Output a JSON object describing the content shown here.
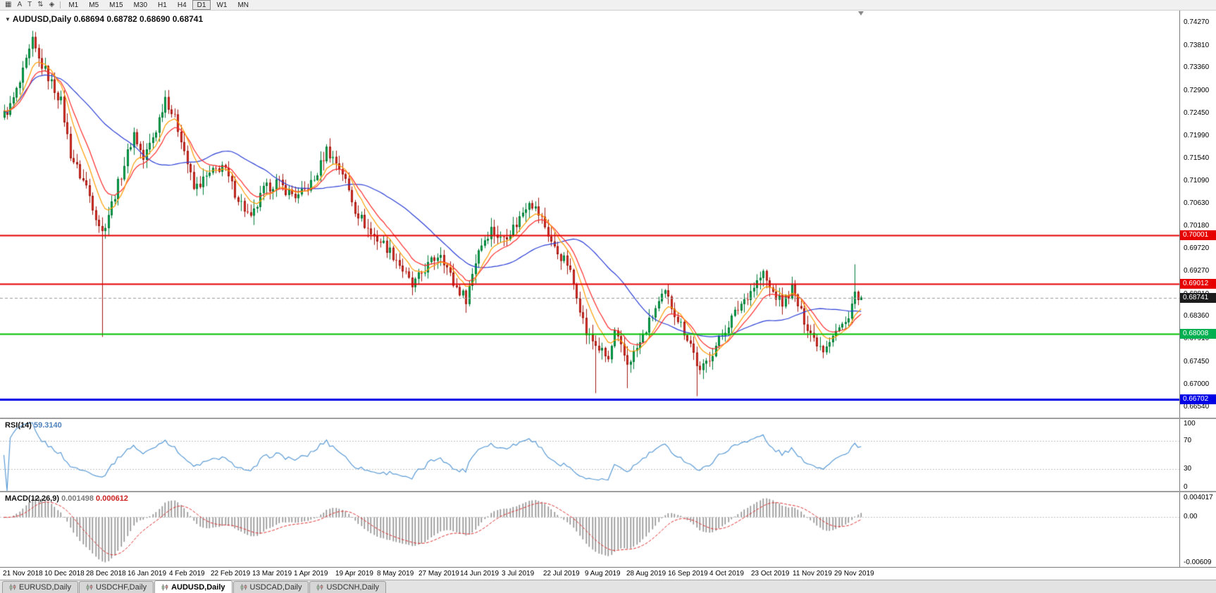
{
  "toolbar": {
    "tools": [
      {
        "name": "chart-grid-icon",
        "glyph": "▦"
      },
      {
        "name": "arrow-tool-button",
        "glyph": "A"
      },
      {
        "name": "text-tool-button",
        "glyph": "T"
      },
      {
        "name": "scale-updown-icon",
        "glyph": "⇅"
      },
      {
        "name": "objects-tool-icon",
        "glyph": "◈"
      }
    ],
    "timeframes": [
      {
        "label": "M1",
        "active": false
      },
      {
        "label": "M5",
        "active": false
      },
      {
        "label": "M15",
        "active": false
      },
      {
        "label": "M30",
        "active": false
      },
      {
        "label": "H1",
        "active": false
      },
      {
        "label": "H4",
        "active": false
      },
      {
        "label": "D1",
        "active": true
      },
      {
        "label": "W1",
        "active": false
      },
      {
        "label": "MN",
        "active": false
      }
    ]
  },
  "main_chart": {
    "symbol_label": "AUDUSD,Daily",
    "ohlc_text": "0.68694 0.68782 0.68690 0.68741",
    "price_scale_labels": [
      "0.74270",
      "0.73810",
      "0.73360",
      "0.72900",
      "0.72450",
      "0.71990",
      "0.71540",
      "0.71090",
      "0.70630",
      "0.70180",
      "0.69720",
      "0.69270",
      "0.68810",
      "0.68360",
      "0.67910",
      "0.67450",
      "0.67000",
      "0.66540"
    ],
    "hlines": [
      {
        "price": 0.70001,
        "label": "0.70001",
        "line_color": "#e60000",
        "box_color": "#e60000",
        "width": 2,
        "style": "solid"
      },
      {
        "price": 0.69012,
        "label": "0.69012",
        "line_color": "#e60000",
        "box_color": "#e60000",
        "width": 2,
        "style": "solid"
      },
      {
        "price": 0.68741,
        "label": "0.68741",
        "line_color": "#9a9a9a",
        "box_color": "#1c1c1c",
        "width": 1,
        "style": "dashed"
      },
      {
        "price": 0.68008,
        "label": "0.68008",
        "line_color": "#00c000",
        "box_color": "#00b050",
        "width": 2,
        "style": "solid"
      },
      {
        "price": 0.66702,
        "label": "0.66702",
        "line_color": "#0000e6",
        "box_color": "#0000e6",
        "width": 3,
        "style": "solid"
      }
    ]
  },
  "rsi_panel": {
    "name": "RSI(14)",
    "value": "59.3140",
    "scale_labels": [
      "100",
      "70",
      "30",
      "0"
    ],
    "upper_level": 70,
    "lower_level": 30,
    "line_color": "#5b9bd5"
  },
  "macd_panel": {
    "name": "MACD(12,26,9)",
    "value_main": "0.001498",
    "value_signal": "0.000612",
    "scale_top": "0.004017",
    "scale_zero": "0.00",
    "scale_bottom": "-0.00609",
    "histogram_color": "#909090",
    "signal_color": "#e03030"
  },
  "date_axis": [
    "21 Nov 2018",
    "10 Dec 2018",
    "28 Dec 2018",
    "16 Jan 2019",
    "4 Feb 2019",
    "22 Feb 2019",
    "13 Mar 2019",
    "1 Apr 2019",
    "19 Apr 2019",
    "8 May 2019",
    "27 May 2019",
    "14 Jun 2019",
    "3 Jul 2019",
    "22 Jul 2019",
    "9 Aug 2019",
    "28 Aug 2019",
    "16 Sep 2019",
    "4 Oct 2019",
    "23 Oct 2019",
    "11 Nov 2019",
    "29 Nov 2019"
  ],
  "tabs": [
    {
      "label": "EURUSD,Daily",
      "active": false
    },
    {
      "label": "USDCHF,Daily",
      "active": false
    },
    {
      "label": "AUDUSD,Daily",
      "active": true
    },
    {
      "label": "USDCAD,Daily",
      "active": false
    },
    {
      "label": "USDCNH,Daily",
      "active": false
    }
  ],
  "chart_data": {
    "type": "candlestick",
    "symbol": "AUDUSD",
    "timeframe": "Daily",
    "last_ohlc": {
      "open": 0.68694,
      "high": 0.68782,
      "low": 0.6869,
      "close": 0.68741
    },
    "price_axis": {
      "min": 0.66328,
      "max": 0.74511
    },
    "num_candles": 272,
    "noise": 0.0022,
    "close_waypoints": [
      [
        0,
        0.7243
      ],
      [
        2,
        0.7258
      ],
      [
        5,
        0.7305
      ],
      [
        9,
        0.7388
      ],
      [
        11,
        0.7352
      ],
      [
        13,
        0.733
      ],
      [
        16,
        0.7293
      ],
      [
        18,
        0.7268
      ],
      [
        21,
        0.7163
      ],
      [
        24,
        0.712
      ],
      [
        26,
        0.7098
      ],
      [
        29,
        0.704
      ],
      [
        31,
        0.7005
      ],
      [
        34,
        0.7062
      ],
      [
        37,
        0.7122
      ],
      [
        41,
        0.7205
      ],
      [
        44,
        0.7152
      ],
      [
        48,
        0.7212
      ],
      [
        51,
        0.7278
      ],
      [
        54,
        0.7232
      ],
      [
        56,
        0.7196
      ],
      [
        60,
        0.7092
      ],
      [
        64,
        0.7116
      ],
      [
        69,
        0.714
      ],
      [
        73,
        0.7086
      ],
      [
        78,
        0.703
      ],
      [
        82,
        0.709
      ],
      [
        86,
        0.7106
      ],
      [
        90,
        0.7086
      ],
      [
        93,
        0.7076
      ],
      [
        98,
        0.711
      ],
      [
        102,
        0.7172
      ],
      [
        105,
        0.7146
      ],
      [
        107,
        0.7126
      ],
      [
        111,
        0.7052
      ],
      [
        116,
        0.7002
      ],
      [
        120,
        0.6982
      ],
      [
        124,
        0.6952
      ],
      [
        129,
        0.6896
      ],
      [
        133,
        0.6932
      ],
      [
        138,
        0.6966
      ],
      [
        142,
        0.6902
      ],
      [
        146,
        0.6872
      ],
      [
        150,
        0.6972
      ],
      [
        154,
        0.7012
      ],
      [
        157,
        0.6992
      ],
      [
        159,
        0.7002
      ],
      [
        162,
        0.7022
      ],
      [
        166,
        0.7072
      ],
      [
        170,
        0.7032
      ],
      [
        174,
        0.6972
      ],
      [
        178,
        0.6942
      ],
      [
        181,
        0.6882
      ],
      [
        184,
        0.6802
      ],
      [
        188,
        0.6772
      ],
      [
        191,
        0.6748
      ],
      [
        193,
        0.6802
      ],
      [
        197,
        0.6742
      ],
      [
        201,
        0.6782
      ],
      [
        206,
        0.6852
      ],
      [
        209,
        0.6882
      ],
      [
        213,
        0.6832
      ],
      [
        217,
        0.6782
      ],
      [
        220,
        0.6722
      ],
      [
        224,
        0.6766
      ],
      [
        229,
        0.6822
      ],
      [
        233,
        0.6862
      ],
      [
        238,
        0.6906
      ],
      [
        240,
        0.6922
      ],
      [
        242,
        0.6892
      ],
      [
        246,
        0.6862
      ],
      [
        249,
        0.6892
      ],
      [
        252,
        0.6842
      ],
      [
        256,
        0.6792
      ],
      [
        259,
        0.6772
      ],
      [
        262,
        0.6802
      ],
      [
        266,
        0.6822
      ],
      [
        269,
        0.6882
      ],
      [
        271,
        0.68741
      ]
    ],
    "wick_overrides": {
      "lows": [
        [
          31,
          0.6795
        ],
        [
          187,
          0.6682
        ],
        [
          197,
          0.6692
        ],
        [
          219,
          0.6676
        ]
      ],
      "highs": [
        [
          9,
          0.7394
        ],
        [
          269,
          0.6941
        ]
      ]
    },
    "indicators": {
      "ma_fast": {
        "period": 8,
        "color": "#ff9d00"
      },
      "ma_mid": {
        "period": 13,
        "color": "#ff2a2a"
      },
      "ma_slow": {
        "period": 34,
        "color": "#2b3fd6"
      },
      "rsi": {
        "period": 14,
        "last": 59.314
      },
      "macd": {
        "fast": 12,
        "slow": 26,
        "signal": 9,
        "last_main": 0.001498,
        "last_signal": 0.000612
      }
    },
    "colors": {
      "up": "#00b050",
      "up_border": "#007a36",
      "down": "#e8352c",
      "down_border": "#a01810",
      "background": "#ffffff"
    }
  }
}
